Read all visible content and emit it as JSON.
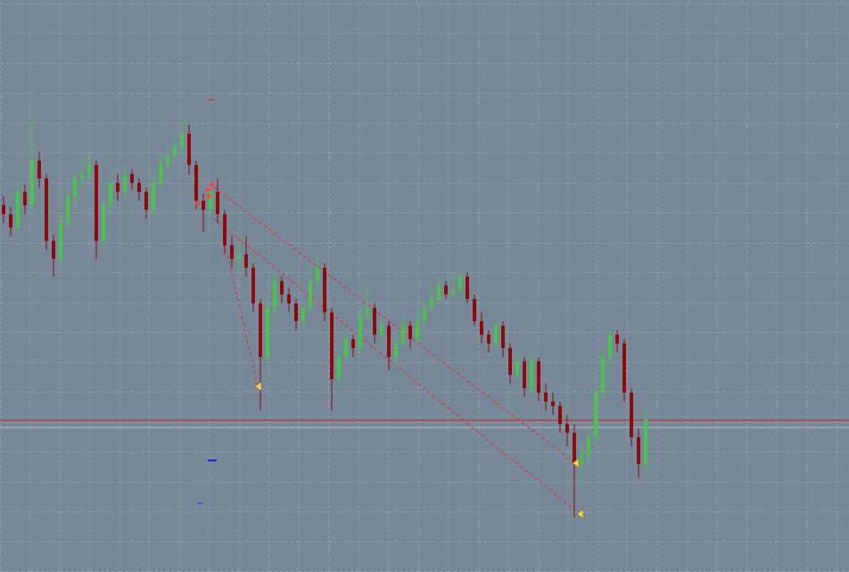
{
  "chart_data": {
    "type": "candlestick",
    "ylim": [
      0,
      641
    ],
    "up_color": "#4cc24c",
    "down_color": "#8b0a0a",
    "background": "#778899",
    "open": [
      411,
      401,
      386,
      426,
      411,
      461,
      441,
      371,
      351,
      391,
      421,
      441,
      446,
      456,
      371,
      411,
      436,
      426,
      446,
      436,
      426,
      406,
      436,
      456,
      466,
      476,
      491,
      456,
      416,
      406,
      426,
      401,
      366,
      351,
      356,
      341,
      301,
      241,
      296,
      326,
      311,
      301,
      281,
      296,
      326,
      341,
      291,
      216,
      241,
      261,
      251,
      286,
      296,
      266,
      276,
      241,
      256,
      276,
      261,
      281,
      296,
      306,
      321,
      311,
      316,
      331,
      306,
      281,
      266,
      256,
      276,
      251,
      221,
      236,
      206,
      236,
      201,
      191,
      186,
      166,
      156,
      121,
      131,
      151,
      201,
      241,
      266,
      256,
      201,
      151,
      121
    ],
    "high": [
      421,
      409,
      436,
      434,
      511,
      471,
      446,
      378,
      399,
      431,
      451,
      466,
      471,
      461,
      419,
      446,
      446,
      454,
      451,
      441,
      431,
      444,
      466,
      481,
      486,
      511,
      501,
      461,
      424,
      436,
      441,
      406,
      376,
      366,
      376,
      346,
      306,
      306,
      336,
      331,
      319,
      306,
      304,
      346,
      356,
      346,
      296,
      251,
      271,
      266,
      296,
      321,
      301,
      286,
      281,
      266,
      286,
      281,
      291,
      306,
      321,
      331,
      326,
      336,
      336,
      336,
      311,
      291,
      271,
      281,
      281,
      256,
      246,
      241,
      246,
      241,
      211,
      201,
      191,
      176,
      166,
      141,
      161,
      211,
      251,
      271,
      271,
      261,
      206,
      161,
      181
    ],
    "low": [
      391,
      376,
      378,
      401,
      403,
      431,
      361,
      331,
      343,
      383,
      413,
      431,
      438,
      351,
      363,
      401,
      416,
      418,
      428,
      416,
      396,
      398,
      428,
      448,
      458,
      468,
      446,
      406,
      381,
      396,
      391,
      356,
      341,
      336,
      331,
      291,
      181,
      231,
      286,
      301,
      291,
      271,
      276,
      291,
      316,
      281,
      181,
      206,
      236,
      241,
      246,
      281,
      256,
      256,
      226,
      231,
      251,
      251,
      256,
      276,
      291,
      301,
      306,
      306,
      311,
      301,
      276,
      256,
      246,
      251,
      241,
      211,
      216,
      196,
      201,
      191,
      181,
      176,
      156,
      141,
      61,
      101,
      121,
      141,
      191,
      231,
      246,
      191,
      141,
      106,
      111
    ],
    "close": [
      401,
      386,
      426,
      411,
      461,
      441,
      371,
      351,
      391,
      421,
      441,
      446,
      456,
      371,
      411,
      436,
      426,
      446,
      436,
      426,
      406,
      436,
      456,
      466,
      476,
      491,
      456,
      416,
      406,
      426,
      401,
      366,
      351,
      356,
      341,
      301,
      241,
      296,
      326,
      311,
      301,
      281,
      296,
      326,
      341,
      291,
      216,
      241,
      261,
      251,
      286,
      296,
      266,
      276,
      241,
      256,
      276,
      261,
      281,
      296,
      306,
      321,
      311,
      316,
      331,
      306,
      281,
      266,
      256,
      276,
      251,
      221,
      236,
      206,
      236,
      201,
      191,
      186,
      166,
      156,
      121,
      131,
      151,
      201,
      241,
      266,
      256,
      201,
      151,
      121,
      171
    ]
  }
}
